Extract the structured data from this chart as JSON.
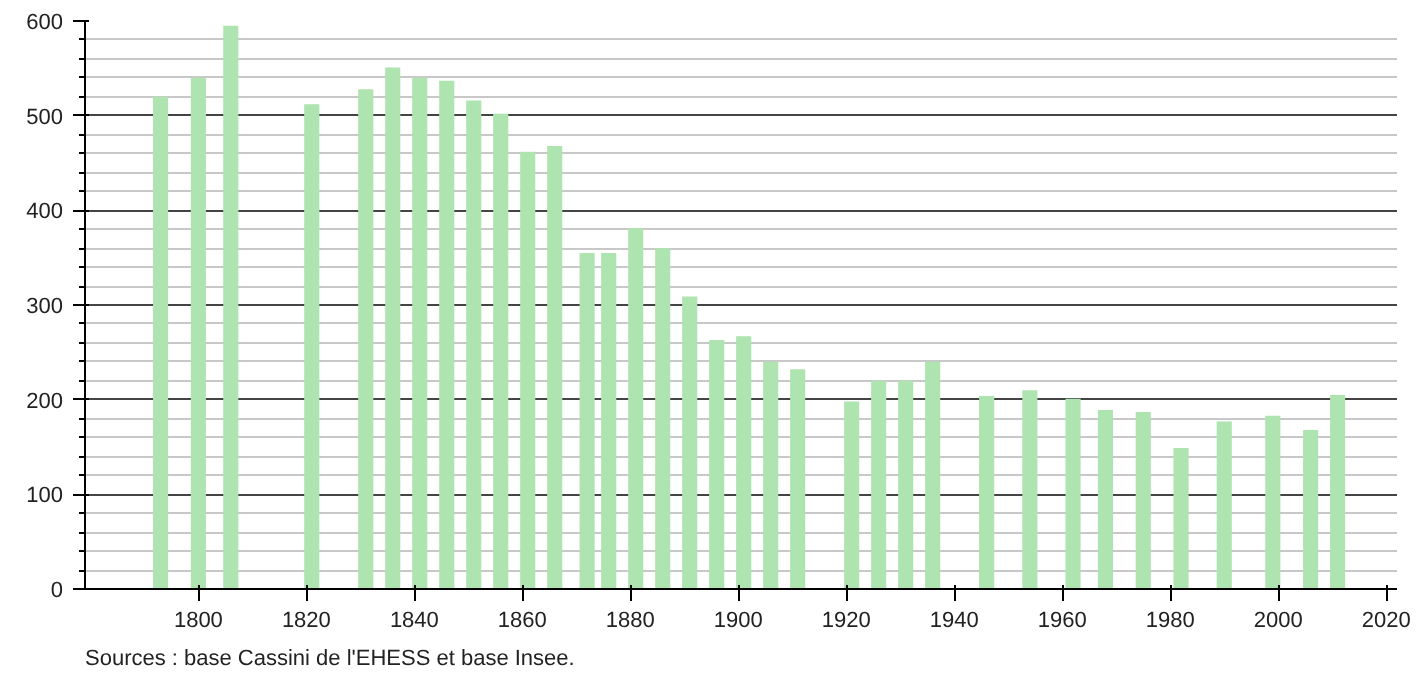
{
  "chart_data": {
    "type": "bar",
    "x": [
      1793,
      1800,
      1806,
      1821,
      1831,
      1836,
      1841,
      1846,
      1851,
      1856,
      1861,
      1866,
      1872,
      1876,
      1881,
      1886,
      1891,
      1896,
      1901,
      1906,
      1911,
      1921,
      1926,
      1931,
      1936,
      1946,
      1954,
      1962,
      1968,
      1975,
      1982,
      1990,
      1999,
      2006,
      2011
    ],
    "values": [
      520,
      540,
      595,
      512,
      528,
      551,
      540,
      537,
      516,
      502,
      462,
      468,
      355,
      355,
      381,
      360,
      309,
      263,
      267,
      240,
      232,
      198,
      220,
      220,
      240,
      204,
      210,
      201,
      189,
      187,
      149,
      177,
      183,
      168,
      205
    ],
    "color": "#aee4b0",
    "xlim": [
      1779,
      2022
    ],
    "xticks": [
      1800,
      1820,
      1840,
      1860,
      1880,
      1900,
      1920,
      1940,
      1960,
      1980,
      2000,
      2020
    ],
    "ylim": [
      0,
      600
    ],
    "yticks": [
      0,
      100,
      200,
      300,
      400,
      500,
      600
    ],
    "grid": "y",
    "annotations": [
      "Sources : base Cassini de l'EHESS et base Insee."
    ]
  }
}
